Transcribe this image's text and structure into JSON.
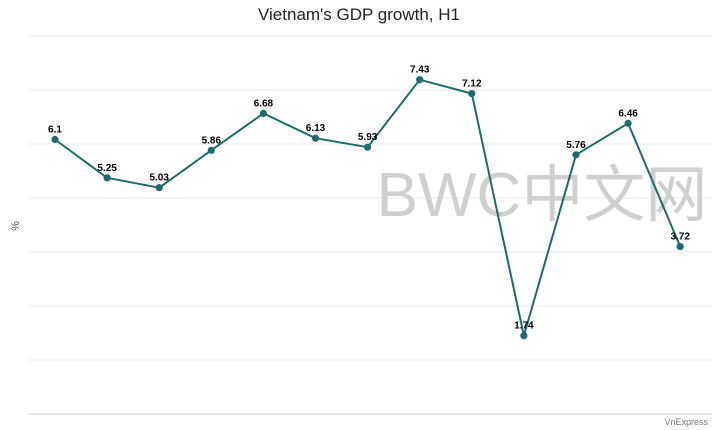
{
  "watermark": "BWC中文网",
  "credit": "VnExpress",
  "colors": {
    "series": "#1f6b6b",
    "grid": "#e8e8e8"
  },
  "chart_data": {
    "type": "line",
    "title": "Vietnam's GDP growth, H1",
    "xlabel": "",
    "ylabel": "%",
    "ylim": [
      0,
      8.4
    ],
    "grid": true,
    "legend": "none",
    "series": [
      {
        "values": [
          6.1,
          5.25,
          5.03,
          5.86,
          6.68,
          6.13,
          5.93,
          7.43,
          7.12,
          1.74,
          5.76,
          6.46,
          3.72
        ],
        "labels": [
          "6.1",
          "5.25",
          "5.03",
          "5.86",
          "6.68",
          "6.13",
          "5.93",
          "7.43",
          "7.12",
          "1.74",
          "5.76",
          "6.46",
          "3.72"
        ]
      }
    ]
  }
}
